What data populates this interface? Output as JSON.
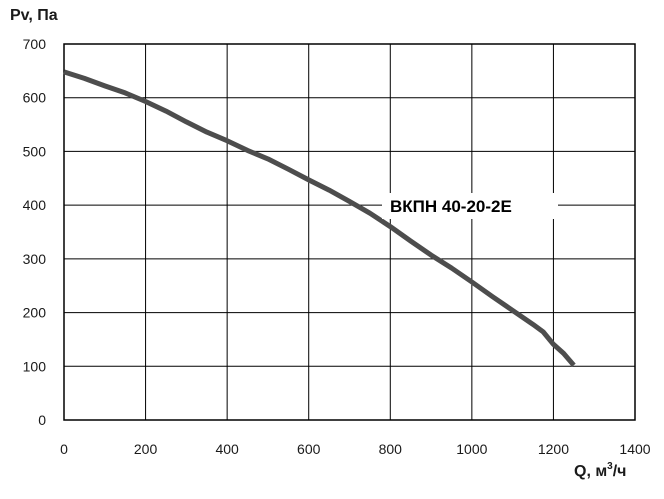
{
  "chart_data": {
    "type": "line",
    "ylabel": "Pv, Па",
    "xlabel": "Q, м³/ч",
    "xlabel_base": "Q, м",
    "xlabel_sup": "3",
    "xlabel_tail": "/ч",
    "xlim": [
      0,
      1400
    ],
    "ylim": [
      0,
      700
    ],
    "x_ticks": [
      "0",
      "200",
      "400",
      "600",
      "800",
      "1000",
      "1200",
      "1400"
    ],
    "y_ticks": [
      "0",
      "100",
      "200",
      "300",
      "400",
      "500",
      "600",
      "700"
    ],
    "x_tick_values": [
      0,
      200,
      400,
      600,
      800,
      1000,
      1200,
      1400
    ],
    "y_tick_values": [
      0,
      100,
      200,
      300,
      400,
      500,
      600,
      700
    ],
    "grid": true,
    "series": [
      {
        "name": "ВКПН 40-20-2Е",
        "x": [
          0,
          50,
          100,
          150,
          200,
          250,
          300,
          350,
          400,
          450,
          500,
          550,
          600,
          650,
          700,
          750,
          800,
          850,
          900,
          950,
          1000,
          1050,
          1100,
          1150,
          1175,
          1200,
          1225,
          1250
        ],
        "y": [
          648,
          636,
          622,
          609,
          593,
          575,
          555,
          536,
          520,
          502,
          486,
          467,
          447,
          428,
          407,
          385,
          360,
          333,
          307,
          283,
          257,
          230,
          204,
          178,
          164,
          141,
          124,
          102
        ]
      }
    ],
    "annotation": {
      "text": "ВКПН 40-20-2Е",
      "position": "right of curve, near 400 Pa"
    },
    "colors": {
      "line": "#4d4d4d",
      "grid": "#000000",
      "text": "#1a1a1a"
    }
  }
}
